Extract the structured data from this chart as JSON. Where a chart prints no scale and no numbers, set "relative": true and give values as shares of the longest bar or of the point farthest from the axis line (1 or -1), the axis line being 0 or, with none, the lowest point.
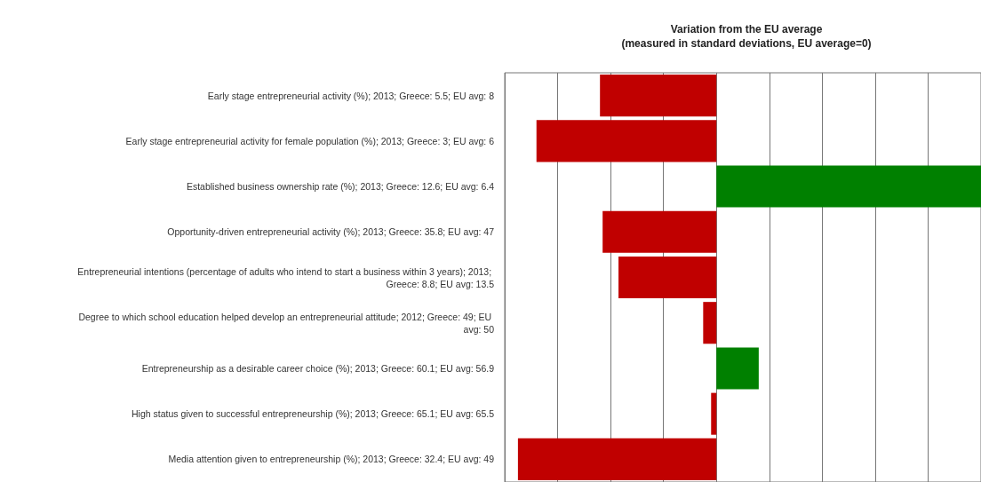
{
  "chart_data": {
    "type": "bar",
    "orientation": "horizontal",
    "relative": true,
    "title": "Variation from the EU average",
    "subtitle": "(measured in standard deviations, EU average=0)",
    "categories": [
      "Early stage entrepreneurial activity (%); 2013; Greece: 5.5; EU avg: 8",
      "Early stage entrepreneurial activity for female population (%); 2013; Greece: 3; EU avg: 6",
      "Established business ownership rate (%); 2013; Greece: 12.6; EU avg: 6.4",
      "Opportunity-driven entrepreneurial activity (%); 2013; Greece: 35.8; EU avg: 47",
      "Entrepreneurial intentions (percentage of adults who intend to start a business within 3 years); 2013; Greece: 8.8; EU avg: 13.5",
      "Degree to which school education helped develop an entrepreneurial attitude; 2012; Greece: 49; EU avg: 50",
      "Entrepreneurship as a desirable career choice (%); 2013; Greece: 60.1; EU avg: 56.9",
      "High status given to successful entrepreneurship (%); 2013; Greece: 65.1; EU avg: 65.5",
      "Media attention given to entrepreneurship (%); 2013; Greece: 32.4; EU avg: 49"
    ],
    "values": [
      -0.44,
      -0.68,
      1,
      -0.43,
      -0.37,
      -0.05,
      0.16,
      -0.02,
      -0.75
    ],
    "colors": [
      "#c00000",
      "#c00000",
      "#008000",
      "#c00000",
      "#c00000",
      "#c00000",
      "#008000",
      "#c00000",
      "#c00000"
    ],
    "grid": "x"
  }
}
